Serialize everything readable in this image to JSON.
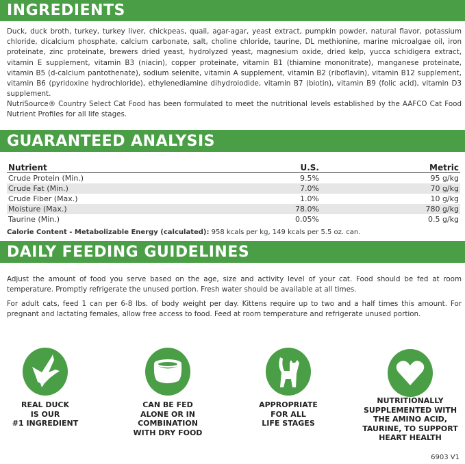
{
  "ingredients": {
    "title": "INGREDIENTS",
    "text": "Duck, duck broth, turkey, turkey liver, chickpeas, quail, agar-agar, yeast extract, pumpkin powder, natural flavor, potassium chloride, dicalcium phosphate, calcium carbonate, salt, choline chloride, taurine, DL methionine, marine microalgae oil, iron proteinate, zinc proteinate, brewers dried yeast, hydrolyzed yeast, magnesium oxide, dried kelp, yucca schidigera extract, vitamin E supplement, vitamin B3 (niacin), copper proteinate, vitamin B1 (thiamine mononitrate), manganese proteinate, vitamin B5 (d-calcium pantothenate), sodium selenite, vitamin A supplement, vitamin B2 (riboflavin), vitamin B12 supplement, vitamin B6 (pyridoxine hydrochloride), ethylenediamine dihydroiodide, vitamin B7 (biotin), vitamin B9 (folic acid), vitamin D3 supplement.",
    "statement": "NutriSource® Country Select Cat Food has been formulated to meet the nutritional levels established by the AAFCO Cat Food Nutrient Profiles for all life stages."
  },
  "analysis": {
    "title": "GUARANTEED ANALYSIS",
    "headers": [
      "Nutrient",
      "U.S.",
      "Metric"
    ],
    "rows": [
      [
        "Crude Protein (Min.)",
        "9.5%",
        "95 g/kg"
      ],
      [
        "Crude Fat (Min.)",
        "7.0%",
        "70 g/kg"
      ],
      [
        "Crude Fiber (Max.)",
        "1.0%",
        "10 g/kg"
      ],
      [
        "Moisture (Max.)",
        "78.0%",
        "780 g/kg"
      ],
      [
        "Taurine (Min.)",
        "0.05%",
        "0.5 g/kg"
      ]
    ],
    "calorie_label": "Calorie Content - Metabolizable Energy (calculated):",
    "calorie_value": " 958 kcals per kg, 149 kcals per 5.5 oz. can."
  },
  "feeding": {
    "title": "DAILY FEEDING GUIDELINES",
    "p1": "Adjust the amount of food you serve based on the age, size and activity level of your cat. Food should be fed at room temperature. Promptly refrigerate the unused portion. Fresh water should be available at all times.",
    "p2": "For adult cats, feed 1 can per 6-8 lbs. of body weight per day. Kittens require up to two and a half times this amount. For pregnant and lactating females, allow free access to food. Feed at room temperature and refrigerate unused portion."
  },
  "badges": [
    {
      "icon": "duck-icon",
      "label": "REAL DUCK\nIS OUR\n#1 INGREDIENT"
    },
    {
      "icon": "bowl-icon",
      "label": "CAN BE FED\nALONE OR IN\nCOMBINATION\nWITH DRY FOOD"
    },
    {
      "icon": "cat-icon",
      "label": "APPROPRIATE\nFOR ALL\nLIFE STAGES"
    },
    {
      "icon": "heart-icon",
      "label": "NUTRITIONALLY\nSUPPLEMENTED WITH\nTHE AMINO ACID,\nTAURINE, TO SUPPORT\nHEART HEALTH"
    }
  ],
  "code": "6903 V1",
  "colors": {
    "accent": "#4a9e45"
  }
}
